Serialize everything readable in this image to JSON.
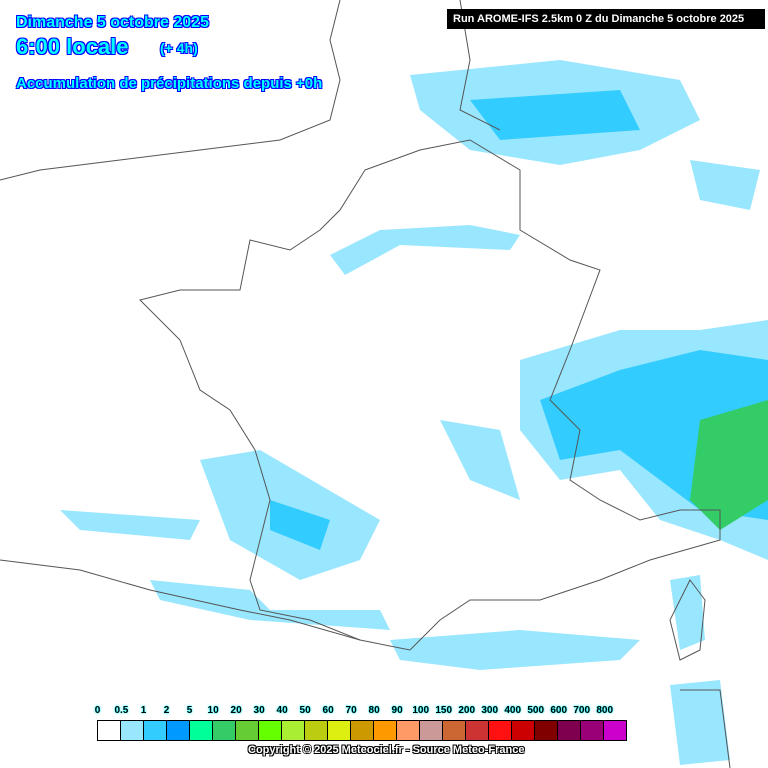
{
  "header": {
    "date": "Dimanche 5 octobre 2025",
    "time": "6:00 locale",
    "offset": "(+ 4h)",
    "product": "Accumulation de précipitations depuis +0h",
    "run": "Run AROME-IFS 2.5km 0 Z du Dimanche 5 octobre 2025"
  },
  "legend": {
    "labels": [
      "0",
      "0.5",
      "1",
      "2",
      "5",
      "10",
      "20",
      "30",
      "40",
      "50",
      "60",
      "70",
      "80",
      "90",
      "100",
      "150",
      "200",
      "300",
      "400",
      "500",
      "600",
      "700",
      "800"
    ],
    "colors": [
      "#ffffff",
      "#99e6ff",
      "#33ccff",
      "#0099ff",
      "#00ff99",
      "#33cc66",
      "#66cc33",
      "#66ff00",
      "#aaee33",
      "#bbcc11",
      "#ddee11",
      "#cc9900",
      "#ff9900",
      "#ff9966",
      "#cc9999",
      "#cc6633",
      "#cc3333",
      "#ff1111",
      "#cc0000",
      "#800000",
      "#800050",
      "#990077",
      "#cc00cc"
    ]
  },
  "footer": {
    "copyright": "Copyright © 2025 Meteociel.fr - Source Meteo-France"
  }
}
